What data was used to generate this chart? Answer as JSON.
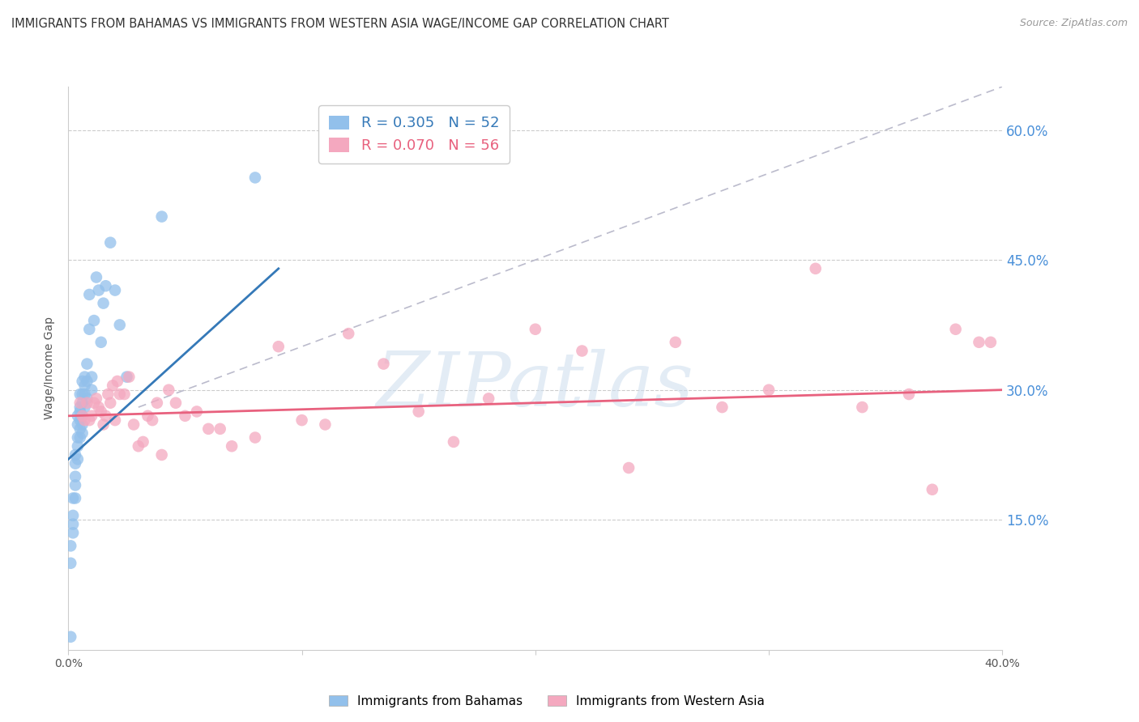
{
  "title": "IMMIGRANTS FROM BAHAMAS VS IMMIGRANTS FROM WESTERN ASIA WAGE/INCOME GAP CORRELATION CHART",
  "source": "Source: ZipAtlas.com",
  "ylabel": "Wage/Income Gap",
  "ytick_labels": [
    "60.0%",
    "45.0%",
    "30.0%",
    "15.0%"
  ],
  "ytick_values": [
    0.6,
    0.45,
    0.3,
    0.15
  ],
  "xlim": [
    0.0,
    0.4
  ],
  "ylim": [
    0.0,
    0.65
  ],
  "grid_color": "#cccccc",
  "background_color": "#ffffff",
  "watermark_text": "ZIPatlas",
  "series": [
    {
      "label": "Immigrants from Bahamas",
      "color": "#92c0eb",
      "R": 0.305,
      "N": 52,
      "trend_color": "#3579b8",
      "trend_x": [
        0.0,
        0.09
      ],
      "trend_y": [
        0.22,
        0.44
      ],
      "points_x": [
        0.001,
        0.001,
        0.001,
        0.002,
        0.002,
        0.002,
        0.002,
        0.003,
        0.003,
        0.003,
        0.003,
        0.003,
        0.004,
        0.004,
        0.004,
        0.004,
        0.004,
        0.005,
        0.005,
        0.005,
        0.005,
        0.005,
        0.005,
        0.006,
        0.006,
        0.006,
        0.006,
        0.006,
        0.006,
        0.007,
        0.007,
        0.007,
        0.007,
        0.008,
        0.008,
        0.008,
        0.009,
        0.009,
        0.01,
        0.01,
        0.011,
        0.012,
        0.013,
        0.014,
        0.015,
        0.016,
        0.018,
        0.02,
        0.022,
        0.025,
        0.04,
        0.08
      ],
      "points_y": [
        0.015,
        0.1,
        0.12,
        0.135,
        0.145,
        0.155,
        0.175,
        0.175,
        0.19,
        0.2,
        0.215,
        0.225,
        0.22,
        0.235,
        0.245,
        0.26,
        0.27,
        0.245,
        0.255,
        0.265,
        0.275,
        0.28,
        0.295,
        0.25,
        0.26,
        0.27,
        0.285,
        0.295,
        0.31,
        0.28,
        0.295,
        0.305,
        0.315,
        0.29,
        0.31,
        0.33,
        0.37,
        0.41,
        0.3,
        0.315,
        0.38,
        0.43,
        0.415,
        0.355,
        0.4,
        0.42,
        0.47,
        0.415,
        0.375,
        0.315,
        0.5,
        0.545
      ]
    },
    {
      "label": "Immigrants from Western Asia",
      "color": "#f4a8bf",
      "R": 0.07,
      "N": 56,
      "trend_color": "#e8617e",
      "trend_x": [
        0.0,
        0.4
      ],
      "trend_y": [
        0.27,
        0.3
      ],
      "points_x": [
        0.005,
        0.006,
        0.007,
        0.008,
        0.009,
        0.01,
        0.011,
        0.012,
        0.013,
        0.014,
        0.015,
        0.016,
        0.017,
        0.018,
        0.019,
        0.02,
        0.021,
        0.022,
        0.024,
        0.026,
        0.028,
        0.03,
        0.032,
        0.034,
        0.036,
        0.038,
        0.04,
        0.043,
        0.046,
        0.05,
        0.055,
        0.06,
        0.065,
        0.07,
        0.08,
        0.09,
        0.1,
        0.11,
        0.12,
        0.135,
        0.15,
        0.165,
        0.18,
        0.2,
        0.22,
        0.24,
        0.26,
        0.28,
        0.3,
        0.32,
        0.34,
        0.36,
        0.37,
        0.38,
        0.39,
        0.395
      ],
      "points_y": [
        0.285,
        0.27,
        0.265,
        0.285,
        0.265,
        0.27,
        0.285,
        0.29,
        0.28,
        0.275,
        0.26,
        0.27,
        0.295,
        0.285,
        0.305,
        0.265,
        0.31,
        0.295,
        0.295,
        0.315,
        0.26,
        0.235,
        0.24,
        0.27,
        0.265,
        0.285,
        0.225,
        0.3,
        0.285,
        0.27,
        0.275,
        0.255,
        0.255,
        0.235,
        0.245,
        0.35,
        0.265,
        0.26,
        0.365,
        0.33,
        0.275,
        0.24,
        0.29,
        0.37,
        0.345,
        0.21,
        0.355,
        0.28,
        0.3,
        0.44,
        0.28,
        0.295,
        0.185,
        0.37,
        0.355,
        0.355
      ]
    }
  ]
}
